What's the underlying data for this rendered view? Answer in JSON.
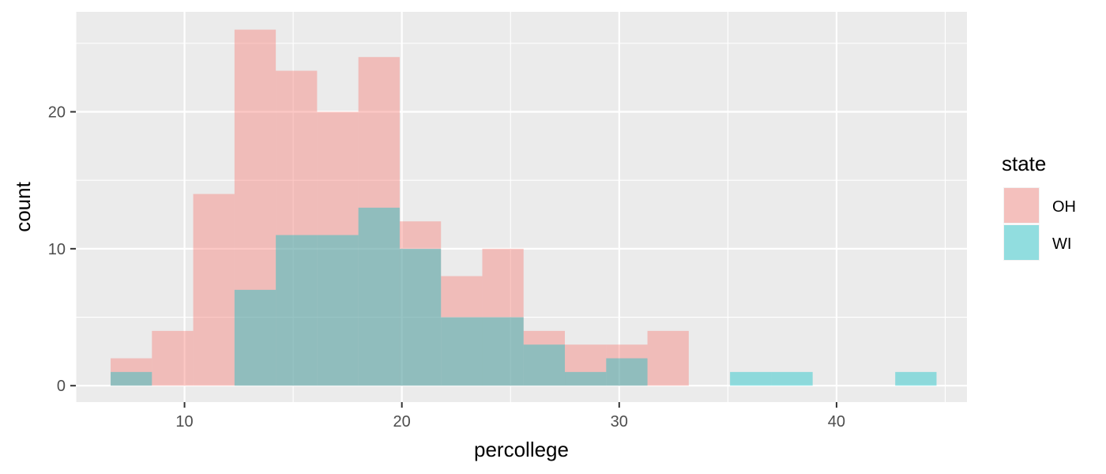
{
  "chart_data": {
    "type": "bar",
    "subtype": "overlaid-histogram",
    "title": "",
    "xlabel": "percollege",
    "ylabel": "count",
    "xlim": [
      5,
      46
    ],
    "ylim": [
      -1.2,
      27.3
    ],
    "xticks": [
      10,
      20,
      30,
      40
    ],
    "yticks": [
      0,
      10,
      20
    ],
    "bin_width": 1.9,
    "bin_left_edges": [
      6.6,
      8.5,
      10.4,
      12.3,
      14.2,
      16.1,
      18.0,
      19.9,
      21.8,
      23.7,
      25.6,
      27.5,
      29.4,
      31.3,
      33.2,
      35.1,
      37.0,
      38.9,
      40.8,
      42.7
    ],
    "legend_title": "state",
    "legend_position": "right",
    "grid": true,
    "series": [
      {
        "name": "OH",
        "color": "#F8766D",
        "values": [
          2,
          4,
          14,
          26,
          23,
          20,
          24,
          12,
          8,
          10,
          4,
          3,
          3,
          4,
          0,
          0,
          0,
          0,
          0,
          0
        ]
      },
      {
        "name": "WI",
        "color": "#00BFC4",
        "values": [
          1,
          0,
          0,
          7,
          11,
          11,
          13,
          10,
          5,
          5,
          3,
          1,
          2,
          0,
          0,
          1,
          1,
          0,
          0,
          1
        ]
      }
    ]
  }
}
